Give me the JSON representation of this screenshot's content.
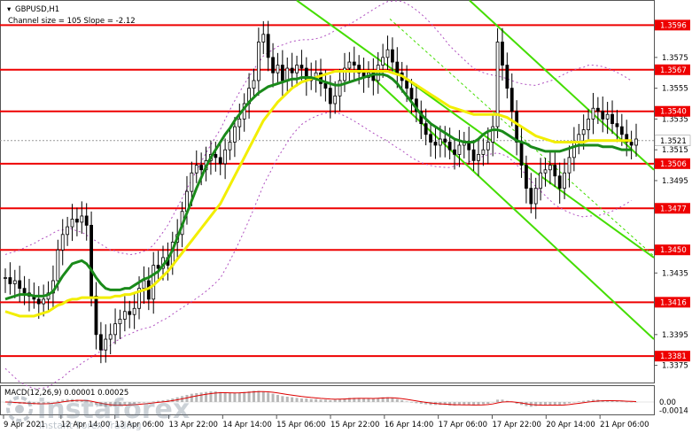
{
  "chart_data": {
    "type": "line",
    "symbol": "GBPUSD,H1",
    "channel_info": "Channel size = 105 Slope = -2.12",
    "macd_label": "MACD(12,26,9) 0.00001 0.00025",
    "y_range": [
      1.3365,
      1.361
    ],
    "price_ticks": [
      "1.3575",
      "1.3555",
      "1.3535",
      "1.3515",
      "1.3495",
      "1.3435",
      "1.3395",
      "1.3375"
    ],
    "price_tick_values": [
      1.3575,
      1.3555,
      1.3535,
      1.3515,
      1.3495,
      1.3435,
      1.3395,
      1.3375
    ],
    "levels": [
      {
        "label": "1.3596",
        "value": 1.3596
      },
      {
        "label": "1.3567",
        "value": 1.3567
      },
      {
        "label": "1.3540",
        "value": 1.354
      },
      {
        "label": "1.3506",
        "value": 1.3506
      },
      {
        "label": "1.3477",
        "value": 1.3477
      },
      {
        "label": "1.3450",
        "value": 1.345
      },
      {
        "label": "1.3416",
        "value": 1.3416
      },
      {
        "label": "1.3381",
        "value": 1.3381
      }
    ],
    "current_price": {
      "label": "1.3521",
      "value": 1.3521
    },
    "x_labels": [
      "9 Apr 2021",
      "12 Apr 14:00",
      "13 Apr 06:00",
      "13 Apr 22:00",
      "14 Apr 14:00",
      "15 Apr 06:00",
      "15 Apr 22:00",
      "16 Apr 14:00",
      "17 Apr 06:00",
      "17 Apr 22:00",
      "20 Apr 14:00",
      "21 Apr 06:00"
    ],
    "macd_ticks": [
      "0.00",
      "-0.0014"
    ],
    "macd_tick_values": [
      0.0,
      -0.0014
    ],
    "macd_range": [
      -0.0018,
      0.0024
    ],
    "close": [
      1.3432,
      1.3428,
      1.343,
      1.3425,
      1.3422,
      1.342,
      1.3418,
      1.3415,
      1.3418,
      1.3422,
      1.343,
      1.345,
      1.346,
      1.3465,
      1.347,
      1.3468,
      1.3472,
      1.3466,
      1.342,
      1.3395,
      1.3385,
      1.3392,
      1.3395,
      1.3402,
      1.3405,
      1.341,
      1.3408,
      1.3412,
      1.3425,
      1.343,
      1.3418,
      1.344,
      1.3438,
      1.3445,
      1.344,
      1.3455,
      1.346,
      1.3475,
      1.3488,
      1.35,
      1.3505,
      1.3502,
      1.3508,
      1.3512,
      1.351,
      1.3506,
      1.3515,
      1.352,
      1.353,
      1.3535,
      1.3545,
      1.3555,
      1.356,
      1.3585,
      1.359,
      1.3575,
      1.3565,
      1.357,
      1.356,
      1.3568,
      1.3565,
      1.357,
      1.3568,
      1.356,
      1.3562,
      1.3565,
      1.3558,
      1.3555,
      1.3545,
      1.355,
      1.356,
      1.3568,
      1.3572,
      1.357,
      1.3565,
      1.3562,
      1.3565,
      1.356,
      1.357,
      1.3575,
      1.358,
      1.3572,
      1.3565,
      1.356,
      1.3555,
      1.3548,
      1.354,
      1.3532,
      1.3525,
      1.352,
      1.3518,
      1.3522,
      1.352,
      1.3515,
      1.3512,
      1.3518,
      1.352,
      1.3515,
      1.3508,
      1.3512,
      1.3515,
      1.352,
      1.353,
      1.3585,
      1.357,
      1.3555,
      1.354,
      1.352,
      1.3505,
      1.349,
      1.348,
      1.349,
      1.35,
      1.3502,
      1.3505,
      1.3498,
      1.349,
      1.35,
      1.351,
      1.352,
      1.3525,
      1.3528,
      1.3535,
      1.3542,
      1.354,
      1.3535,
      1.3538,
      1.3532,
      1.353,
      1.3525,
      1.352,
      1.3518,
      1.3522
    ],
    "ma_fast": [
      1.3418,
      1.3419,
      1.342,
      1.3421,
      1.3421,
      1.3421,
      1.342,
      1.342,
      1.342,
      1.3421,
      1.3423,
      1.3428,
      1.3433,
      1.3437,
      1.3441,
      1.3442,
      1.3443,
      1.3441,
      1.3437,
      1.3432,
      1.3428,
      1.3425,
      1.3424,
      1.3424,
      1.3424,
      1.3425,
      1.3425,
      1.3427,
      1.3429,
      1.3431,
      1.3432,
      1.3434,
      1.3436,
      1.344,
      1.3444,
      1.345,
      1.3458,
      1.3466,
      1.3474,
      1.3482,
      1.349,
      1.3497,
      1.3504,
      1.351,
      1.3515,
      1.352,
      1.3525,
      1.3529,
      1.3534,
      1.3538,
      1.3542,
      1.3546,
      1.3549,
      1.3552,
      1.3554,
      1.3556,
      1.3557,
      1.3558,
      1.3559,
      1.356,
      1.3561,
      1.3561,
      1.3562,
      1.3562,
      1.3562,
      1.3561,
      1.356,
      1.3559,
      1.3558,
      1.3557,
      1.3557,
      1.3558,
      1.3559,
      1.356,
      1.3561,
      1.3562,
      1.3563,
      1.3564,
      1.3564,
      1.3564,
      1.3563,
      1.3561,
      1.3558,
      1.3554,
      1.355,
      1.3546,
      1.3542,
      1.3538,
      1.3535,
      1.3532,
      1.353,
      1.3528,
      1.3526,
      1.3524,
      1.3522,
      1.3521,
      1.352,
      1.352,
      1.352,
      1.3522,
      1.3525,
      1.3527,
      1.3528,
      1.3528,
      1.3527,
      1.3525,
      1.3523,
      1.3521,
      1.352,
      1.3519,
      1.3517,
      1.3516,
      1.3515,
      1.3514,
      1.3514,
      1.3514,
      1.3514,
      1.3515,
      1.3516,
      1.3517,
      1.3518,
      1.3518,
      1.3518,
      1.3518,
      1.3518,
      1.3517,
      1.3517,
      1.3517,
      1.3516,
      1.3515,
      1.3515,
      1.3515
    ],
    "ma_slow": [
      1.341,
      1.3409,
      1.3408,
      1.3407,
      1.3407,
      1.3407,
      1.3407,
      1.3408,
      1.3409,
      1.341,
      1.3412,
      1.3414,
      1.3415,
      1.3417,
      1.3418,
      1.3418,
      1.3419,
      1.3419,
      1.3419,
      1.3419,
      1.3419,
      1.3419,
      1.3419,
      1.342,
      1.342,
      1.3421,
      1.3421,
      1.3422,
      1.3423,
      1.3424,
      1.3425,
      1.3427,
      1.343,
      1.3433,
      1.3436,
      1.344,
      1.3444,
      1.3448,
      1.3452,
      1.3456,
      1.346,
      1.3464,
      1.3468,
      1.3472,
      1.3476,
      1.348,
      1.3486,
      1.3492,
      1.3498,
      1.3504,
      1.351,
      1.3516,
      1.3522,
      1.3528,
      1.3534,
      1.3538,
      1.3542,
      1.3546,
      1.3549,
      1.3552,
      1.3555,
      1.3557,
      1.3559,
      1.356,
      1.3561,
      1.3562,
      1.3563,
      1.3564,
      1.3565,
      1.3566,
      1.3566,
      1.3566,
      1.3566,
      1.3566,
      1.3566,
      1.3566,
      1.3566,
      1.3566,
      1.3566,
      1.3566,
      1.3566,
      1.3565,
      1.3564,
      1.3563,
      1.3561,
      1.3559,
      1.3557,
      1.3555,
      1.3553,
      1.3551,
      1.3549,
      1.3547,
      1.3545,
      1.3543,
      1.3542,
      1.3541,
      1.354,
      1.3539,
      1.3538,
      1.3538,
      1.3538,
      1.3538,
      1.3538,
      1.3538,
      1.3537,
      1.3536,
      1.3534,
      1.3532,
      1.353,
      1.3528,
      1.3526,
      1.3524,
      1.3523,
      1.3522,
      1.3521,
      1.352,
      1.352,
      1.352,
      1.352,
      1.352,
      1.352,
      1.352,
      1.3521,
      1.3521,
      1.3521,
      1.3521,
      1.3521,
      1.3521,
      1.3521,
      1.3521,
      1.3521,
      1.3521
    ],
    "macd_hist": [
      0.0,
      -0.0001,
      -0.0002,
      -0.0003,
      -0.0003,
      -0.0004,
      -0.0004,
      -0.0004,
      -0.0003,
      -0.0002,
      0.0,
      0.0002,
      0.0004,
      0.0005,
      0.0005,
      0.0004,
      0.0003,
      0.0001,
      -0.0002,
      -0.0005,
      -0.0007,
      -0.0008,
      -0.0008,
      -0.0007,
      -0.0006,
      -0.0005,
      -0.0004,
      -0.0003,
      -0.0002,
      -0.0001,
      0.0,
      0.0001,
      0.0002,
      0.0003,
      0.0004,
      0.0006,
      0.0008,
      0.001,
      0.0012,
      0.0014,
      0.0015,
      0.0016,
      0.0017,
      0.0018,
      0.0018,
      0.0017,
      0.0016,
      0.0015,
      0.0015,
      0.0016,
      0.0017,
      0.0018,
      0.0019,
      0.0019,
      0.0018,
      0.0016,
      0.0014,
      0.0012,
      0.001,
      0.0009,
      0.0008,
      0.0007,
      0.0006,
      0.0006,
      0.0005,
      0.0005,
      0.0004,
      0.0004,
      0.0003,
      0.0004,
      0.0005,
      0.0006,
      0.0007,
      0.0007,
      0.0007,
      0.0006,
      0.0006,
      0.0006,
      0.0007,
      0.0008,
      0.0008,
      0.0007,
      0.0005,
      0.0003,
      0.0001,
      -0.0001,
      -0.0002,
      -0.0003,
      -0.0004,
      -0.0005,
      -0.0005,
      -0.0005,
      -0.0005,
      -0.0006,
      -0.0006,
      -0.0005,
      -0.0005,
      -0.0005,
      -0.0006,
      -0.0005,
      -0.0004,
      -0.0003,
      0.0,
      0.0004,
      0.0004,
      0.0002,
      0.0,
      -0.0003,
      -0.0005,
      -0.0007,
      -0.0008,
      -0.0007,
      -0.0006,
      -0.0006,
      -0.0005,
      -0.0005,
      -0.0006,
      -0.0004,
      -0.0002,
      0.0,
      0.0001,
      0.0002,
      0.0003,
      0.0004,
      0.0004,
      0.0003,
      0.0003,
      0.0002,
      0.0002,
      0.0001,
      0.0,
      0.0,
      0.0
    ]
  },
  "watermark": {
    "brand": "instaforex",
    "tagline": "Instant Forex Trading"
  },
  "colors": {
    "level_line": "#ee0000",
    "level_tag": "#ee0000",
    "ma_fast": "#1a8a1a",
    "ma_slow": "#f2ee00",
    "channel": "#44dd00",
    "envelope": "#b050c0",
    "candles": "#000000",
    "macd_hist": "#b8b8b8",
    "macd_signal": "#dd0000"
  }
}
